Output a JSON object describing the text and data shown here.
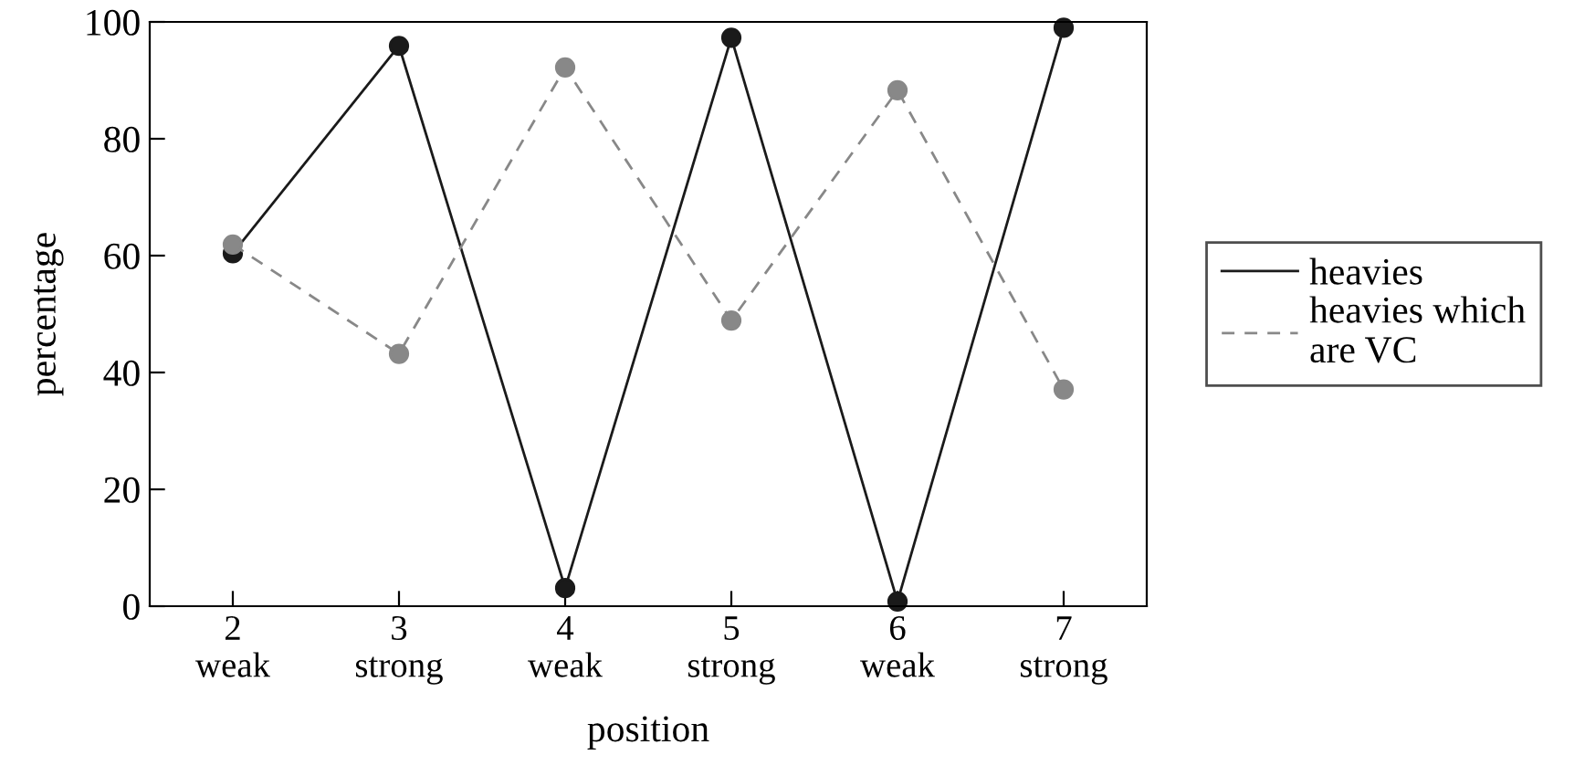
{
  "chart_data": {
    "type": "line",
    "xlabel": "position",
    "ylabel": "percentage",
    "categories": [
      "2\nweak",
      "3\nstrong",
      "4\nweak",
      "5\nstrong",
      "6\nweak",
      "7\nstrong"
    ],
    "series": [
      {
        "name": "heavies",
        "color": "#1a1a1a",
        "line_style": "solid",
        "values": [
          60.4,
          95.9,
          3.1,
          97.3,
          0.8,
          99
        ]
      },
      {
        "name": "heavies which\nare VC",
        "color": "#888888",
        "line_style": "dashed",
        "values": [
          61.9,
          43.2,
          92.2,
          48.9,
          88.3,
          37.1
        ]
      }
    ],
    "ylim": [
      0,
      100
    ],
    "yticks": [
      0,
      20,
      40,
      60,
      80,
      100
    ],
    "grid": false,
    "legend": "right",
    "marker": "circle"
  }
}
